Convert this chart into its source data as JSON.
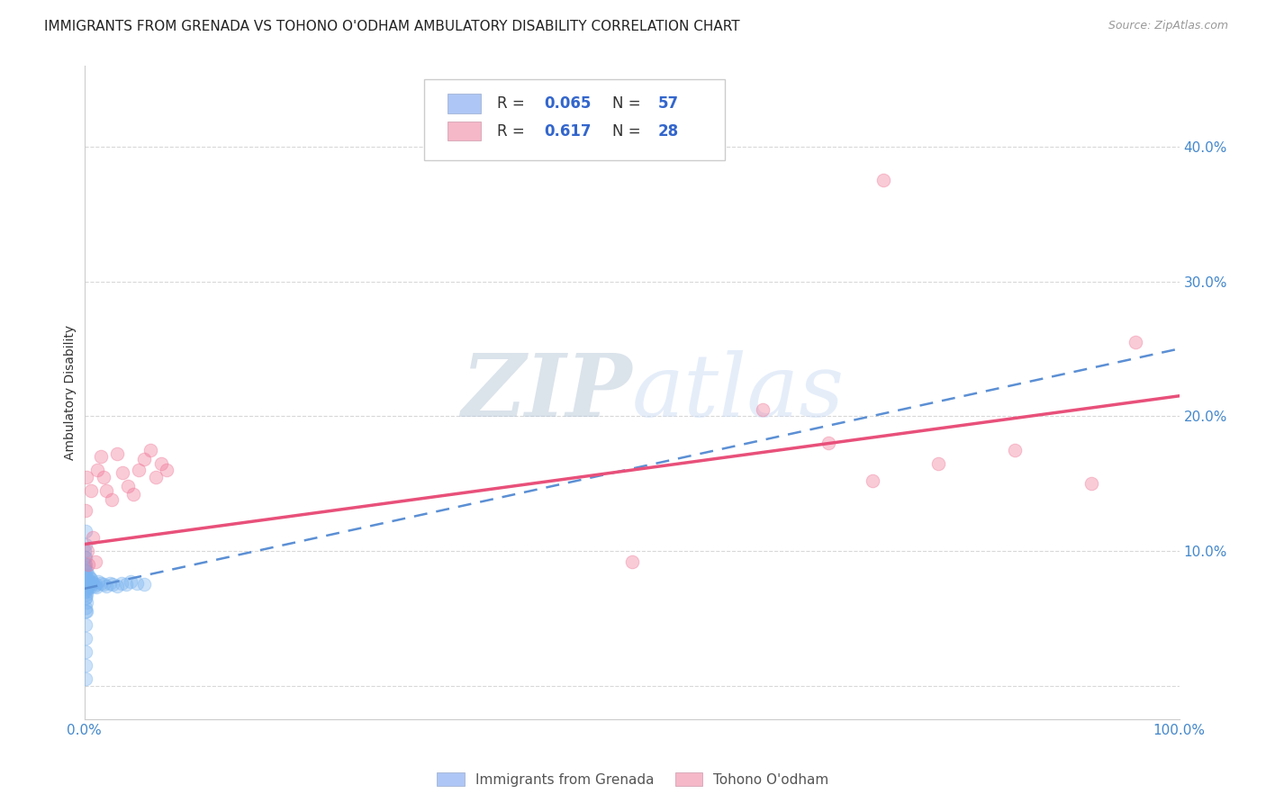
{
  "title": "IMMIGRANTS FROM GRENADA VS TOHONO O'ODHAM AMBULATORY DISABILITY CORRELATION CHART",
  "source": "Source: ZipAtlas.com",
  "ylabel": "Ambulatory Disability",
  "xlim": [
    0.0,
    1.0
  ],
  "ylim": [
    -0.025,
    0.46
  ],
  "yticks": [
    0.0,
    0.1,
    0.2,
    0.3,
    0.4
  ],
  "ytick_labels": [
    "",
    "10.0%",
    "20.0%",
    "30.0%",
    "40.0%"
  ],
  "xticks": [
    0.0,
    0.2,
    0.4,
    0.6,
    0.8,
    1.0
  ],
  "xtick_labels": [
    "0.0%",
    "",
    "",
    "",
    "",
    "100.0%"
  ],
  "blue_scatter_x": [
    0.0003,
    0.0004,
    0.0005,
    0.0005,
    0.0006,
    0.0007,
    0.0007,
    0.0008,
    0.0009,
    0.001,
    0.001,
    0.001,
    0.001,
    0.001,
    0.001,
    0.001,
    0.001,
    0.001,
    0.0012,
    0.0012,
    0.0013,
    0.0014,
    0.0015,
    0.0015,
    0.0016,
    0.0017,
    0.0018,
    0.002,
    0.002,
    0.002,
    0.0022,
    0.0025,
    0.003,
    0.003,
    0.0035,
    0.004,
    0.004,
    0.005,
    0.005,
    0.006,
    0.007,
    0.008,
    0.009,
    0.01,
    0.011,
    0.013,
    0.015,
    0.018,
    0.02,
    0.023,
    0.026,
    0.03,
    0.034,
    0.038,
    0.042,
    0.048,
    0.055
  ],
  "blue_scatter_y": [
    0.07,
    0.09,
    0.085,
    0.095,
    0.1,
    0.088,
    0.075,
    0.065,
    0.055,
    0.045,
    0.035,
    0.025,
    0.015,
    0.005,
    0.115,
    0.105,
    0.095,
    0.085,
    0.09,
    0.08,
    0.072,
    0.065,
    0.058,
    0.075,
    0.068,
    0.062,
    0.055,
    0.085,
    0.078,
    0.07,
    0.075,
    0.072,
    0.08,
    0.073,
    0.078,
    0.082,
    0.074,
    0.08,
    0.073,
    0.079,
    0.077,
    0.076,
    0.074,
    0.075,
    0.073,
    0.077,
    0.076,
    0.075,
    0.074,
    0.076,
    0.075,
    0.074,
    0.076,
    0.075,
    0.077,
    0.076,
    0.075
  ],
  "pink_scatter_x": [
    0.001,
    0.002,
    0.003,
    0.004,
    0.006,
    0.008,
    0.01,
    0.012,
    0.015,
    0.018,
    0.02,
    0.025,
    0.03,
    0.035,
    0.04,
    0.045,
    0.05,
    0.055,
    0.06,
    0.065,
    0.07,
    0.075,
    0.5,
    0.62,
    0.68,
    0.72,
    0.78,
    0.85,
    0.92,
    0.96
  ],
  "pink_scatter_y": [
    0.13,
    0.155,
    0.1,
    0.09,
    0.145,
    0.11,
    0.092,
    0.16,
    0.17,
    0.155,
    0.145,
    0.138,
    0.172,
    0.158,
    0.148,
    0.142,
    0.16,
    0.168,
    0.175,
    0.155,
    0.165,
    0.16,
    0.092,
    0.205,
    0.18,
    0.152,
    0.165,
    0.175,
    0.15,
    0.255
  ],
  "pink_outlier_x": [
    0.73
  ],
  "pink_outlier_y": [
    0.375
  ],
  "blue_line_x": [
    0.0,
    1.0
  ],
  "blue_line_y": [
    0.072,
    0.25
  ],
  "pink_line_x": [
    0.0,
    1.0
  ],
  "pink_line_y": [
    0.105,
    0.215
  ],
  "bg_color": "#ffffff",
  "grid_color": "#d8d8d8",
  "scatter_blue_color": "#7ab4f0",
  "scatter_pink_color": "#f07898",
  "line_blue_color": "#5b8fd4",
  "line_pink_color": "#e8507a",
  "tick_color": "#4488cc",
  "title_fontsize": 11,
  "axis_label_fontsize": 10,
  "scatter_size": 110,
  "scatter_alpha": 0.38,
  "legend_blue_color": "#aec6f5",
  "legend_pink_color": "#f5b8c8",
  "watermark_color": "#ccddf5",
  "watermark_alpha": 0.5
}
